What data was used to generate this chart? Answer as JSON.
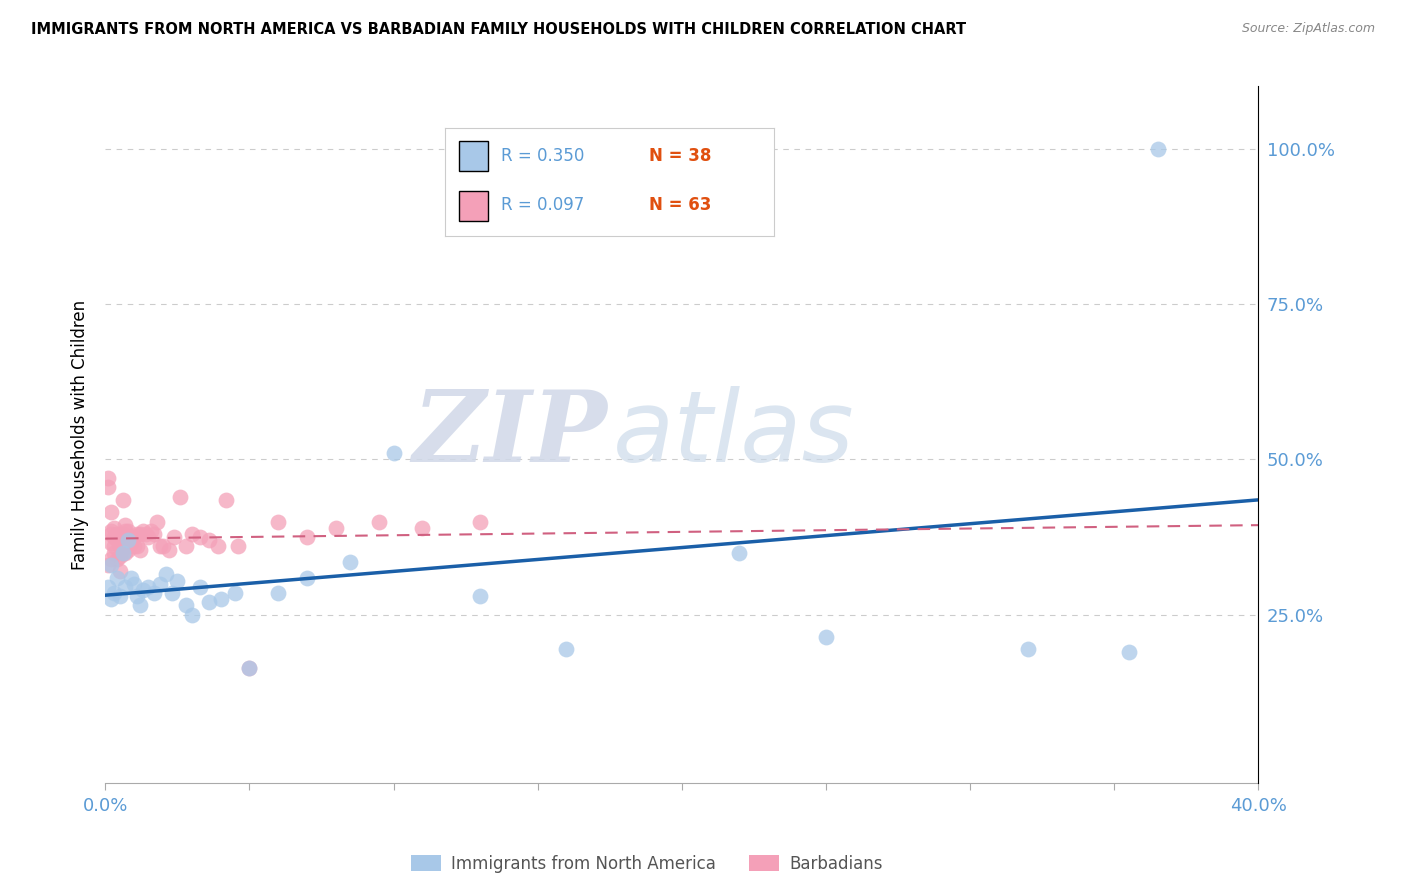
{
  "title": "IMMIGRANTS FROM NORTH AMERICA VS BARBADIAN FAMILY HOUSEHOLDS WITH CHILDREN CORRELATION CHART",
  "source": "Source: ZipAtlas.com",
  "tick_color": "#5b9bd5",
  "ylabel": "Family Households with Children",
  "xlim": [
    0.0,
    0.4
  ],
  "ylim": [
    -0.02,
    1.1
  ],
  "x_tick_positions": [
    0.0,
    0.05,
    0.1,
    0.15,
    0.2,
    0.25,
    0.3,
    0.35,
    0.4
  ],
  "x_tick_labels": [
    "0.0%",
    "",
    "",
    "",
    "",
    "",
    "",
    "",
    "40.0%"
  ],
  "y_tick_positions": [
    0.25,
    0.5,
    0.75,
    1.0
  ],
  "y_tick_labels": [
    "25.0%",
    "50.0%",
    "75.0%",
    "100.0%"
  ],
  "blue_color": "#a8c8e8",
  "pink_color": "#f4a0b8",
  "blue_line_color": "#1a5fa8",
  "pink_line_color": "#d06080",
  "legend1_r": "R = 0.350",
  "legend1_n": "N = 38",
  "legend2_r": "R = 0.097",
  "legend2_n": "N = 63",
  "watermark_zip": "ZIP",
  "watermark_atlas": "atlas",
  "blue_x": [
    0.001,
    0.002,
    0.002,
    0.003,
    0.004,
    0.005,
    0.006,
    0.007,
    0.008,
    0.009,
    0.01,
    0.011,
    0.012,
    0.013,
    0.015,
    0.017,
    0.019,
    0.021,
    0.023,
    0.025,
    0.028,
    0.03,
    0.033,
    0.036,
    0.04,
    0.045,
    0.05,
    0.06,
    0.07,
    0.085,
    0.1,
    0.13,
    0.16,
    0.22,
    0.25,
    0.32,
    0.355,
    0.365
  ],
  "blue_y": [
    0.295,
    0.275,
    0.33,
    0.285,
    0.31,
    0.28,
    0.35,
    0.295,
    0.37,
    0.31,
    0.3,
    0.28,
    0.265,
    0.29,
    0.295,
    0.285,
    0.3,
    0.315,
    0.285,
    0.305,
    0.265,
    0.25,
    0.295,
    0.27,
    0.275,
    0.285,
    0.165,
    0.285,
    0.31,
    0.335,
    0.51,
    0.28,
    0.195,
    0.35,
    0.215,
    0.195,
    0.19,
    1.0
  ],
  "pink_x": [
    0.001,
    0.001,
    0.001,
    0.002,
    0.002,
    0.002,
    0.002,
    0.002,
    0.003,
    0.003,
    0.003,
    0.003,
    0.004,
    0.004,
    0.004,
    0.005,
    0.005,
    0.005,
    0.006,
    0.006,
    0.006,
    0.006,
    0.007,
    0.007,
    0.007,
    0.007,
    0.008,
    0.008,
    0.008,
    0.008,
    0.009,
    0.009,
    0.01,
    0.01,
    0.011,
    0.011,
    0.012,
    0.012,
    0.013,
    0.014,
    0.015,
    0.016,
    0.017,
    0.018,
    0.019,
    0.02,
    0.022,
    0.024,
    0.026,
    0.028,
    0.03,
    0.033,
    0.036,
    0.039,
    0.042,
    0.046,
    0.05,
    0.06,
    0.07,
    0.08,
    0.095,
    0.11,
    0.13
  ],
  "pink_y": [
    0.455,
    0.47,
    0.33,
    0.38,
    0.34,
    0.415,
    0.385,
    0.365,
    0.39,
    0.35,
    0.375,
    0.36,
    0.38,
    0.34,
    0.37,
    0.345,
    0.32,
    0.36,
    0.435,
    0.38,
    0.35,
    0.365,
    0.385,
    0.35,
    0.375,
    0.395,
    0.36,
    0.37,
    0.355,
    0.385,
    0.375,
    0.365,
    0.36,
    0.375,
    0.38,
    0.36,
    0.355,
    0.38,
    0.385,
    0.38,
    0.375,
    0.385,
    0.38,
    0.4,
    0.36,
    0.36,
    0.355,
    0.375,
    0.44,
    0.36,
    0.38,
    0.375,
    0.37,
    0.36,
    0.435,
    0.36,
    0.165,
    0.4,
    0.375,
    0.39,
    0.4,
    0.39,
    0.4
  ]
}
